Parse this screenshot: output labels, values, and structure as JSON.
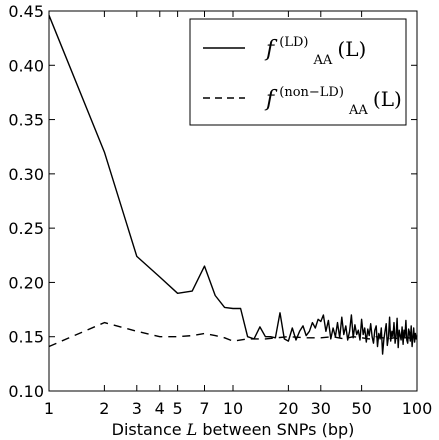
{
  "chart_data": {
    "type": "line",
    "xscale": "log",
    "xlim": [
      1,
      100
    ],
    "ylim": [
      0.1,
      0.45
    ],
    "xlabel": "Distance L between SNPs (bp)",
    "xlabel_parts": [
      "Distance ",
      "L",
      " between SNPs (bp)"
    ],
    "ylabel": "",
    "grid": false,
    "x_ticks": [
      1,
      2,
      3,
      4,
      5,
      7,
      10,
      20,
      30,
      50,
      100
    ],
    "x_tick_labels": [
      "1",
      "2",
      "3",
      "4",
      "5",
      "7",
      "10",
      "20",
      "30",
      "50",
      "100"
    ],
    "y_ticks": [
      0.1,
      0.15,
      0.2,
      0.25,
      0.3,
      0.35,
      0.4,
      0.45
    ],
    "y_tick_labels": [
      "0.10",
      "0.15",
      "0.20",
      "0.25",
      "0.30",
      "0.35",
      "0.40",
      "0.45"
    ],
    "legend": {
      "position": "top-right",
      "entries": [
        {
          "base": "f",
          "sub": "AA",
          "sup": "(LD)",
          "arg": "(L)",
          "style": "solid"
        },
        {
          "base": "f",
          "sub": "AA",
          "sup": "(non−LD)",
          "arg": "(L)",
          "style": "dashed"
        }
      ]
    },
    "series": [
      {
        "style": "solid",
        "x": [
          1,
          2,
          3,
          4,
          5,
          6,
          7,
          8,
          9,
          10,
          11,
          12,
          13,
          14,
          15,
          16,
          17,
          18,
          19,
          20,
          21,
          22,
          23,
          24,
          25,
          26,
          27,
          28,
          29,
          30,
          31,
          32,
          33,
          34,
          35,
          36,
          37,
          38,
          39,
          40,
          41,
          42,
          43,
          44,
          45,
          46,
          47,
          48,
          49,
          50,
          51,
          52,
          53,
          54,
          55,
          56,
          57,
          58,
          59,
          60,
          61,
          62,
          63,
          64,
          65,
          66,
          67,
          68,
          69,
          70,
          71,
          72,
          73,
          74,
          75,
          76,
          77,
          78,
          79,
          80,
          81,
          82,
          83,
          84,
          85,
          86,
          87,
          88,
          89,
          90,
          91,
          92,
          93,
          94,
          95,
          96,
          97,
          98,
          99,
          100
        ],
        "y": [
          0.446,
          0.32,
          0.224,
          0.205,
          0.19,
          0.192,
          0.215,
          0.188,
          0.177,
          0.176,
          0.176,
          0.15,
          0.148,
          0.159,
          0.15,
          0.15,
          0.149,
          0.172,
          0.148,
          0.146,
          0.158,
          0.147,
          0.155,
          0.16,
          0.151,
          0.155,
          0.163,
          0.158,
          0.166,
          0.164,
          0.17,
          0.155,
          0.165,
          0.148,
          0.158,
          0.15,
          0.163,
          0.149,
          0.168,
          0.152,
          0.16,
          0.147,
          0.155,
          0.17,
          0.149,
          0.161,
          0.152,
          0.156,
          0.147,
          0.166,
          0.152,
          0.158,
          0.145,
          0.157,
          0.151,
          0.162,
          0.15,
          0.144,
          0.156,
          0.16,
          0.141,
          0.153,
          0.148,
          0.158,
          0.134,
          0.147,
          0.155,
          0.162,
          0.142,
          0.15,
          0.168,
          0.146,
          0.155,
          0.15,
          0.163,
          0.144,
          0.151,
          0.167,
          0.14,
          0.156,
          0.151,
          0.147,
          0.159,
          0.143,
          0.156,
          0.15,
          0.165,
          0.147,
          0.144,
          0.157,
          0.154,
          0.146,
          0.16,
          0.141,
          0.149,
          0.158,
          0.145,
          0.153,
          0.148,
          0.151
        ]
      },
      {
        "style": "dashed",
        "x": [
          1,
          2,
          3,
          4,
          5,
          6,
          7,
          8,
          9,
          10,
          12,
          15,
          20,
          25,
          30,
          35,
          40,
          45,
          50,
          55,
          60,
          65,
          70,
          75,
          80,
          85,
          90,
          95,
          100
        ],
        "y": [
          0.141,
          0.163,
          0.155,
          0.15,
          0.15,
          0.151,
          0.153,
          0.151,
          0.149,
          0.146,
          0.148,
          0.148,
          0.15,
          0.149,
          0.149,
          0.15,
          0.148,
          0.15,
          0.149,
          0.148,
          0.15,
          0.149,
          0.148,
          0.149,
          0.148,
          0.149,
          0.149,
          0.148,
          0.149
        ]
      }
    ]
  }
}
